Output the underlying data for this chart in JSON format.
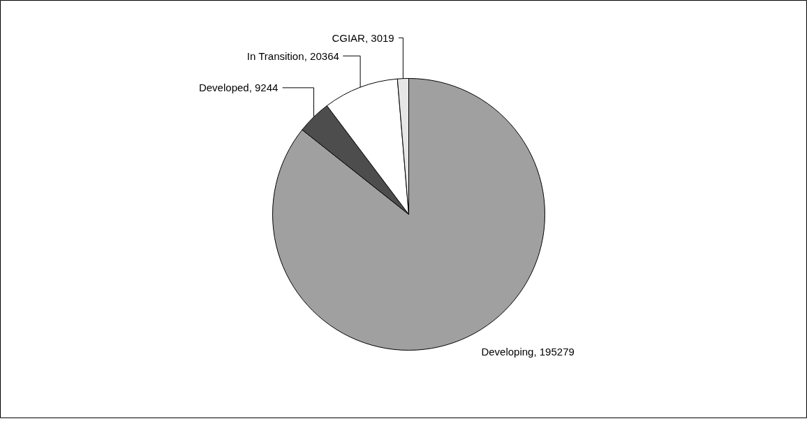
{
  "chart_data": {
    "type": "pie",
    "categories": [
      "Developing",
      "Developed",
      "In Transition",
      "CGIAR"
    ],
    "values": [
      195279,
      9244,
      20364,
      3019
    ],
    "colors": [
      "#a0a0a0",
      "#4d4d4d",
      "#ffffff",
      "#e6e6e6"
    ],
    "value_labels": [
      ", 195279",
      ", 9244",
      ", 20364",
      ", 3019"
    ]
  }
}
